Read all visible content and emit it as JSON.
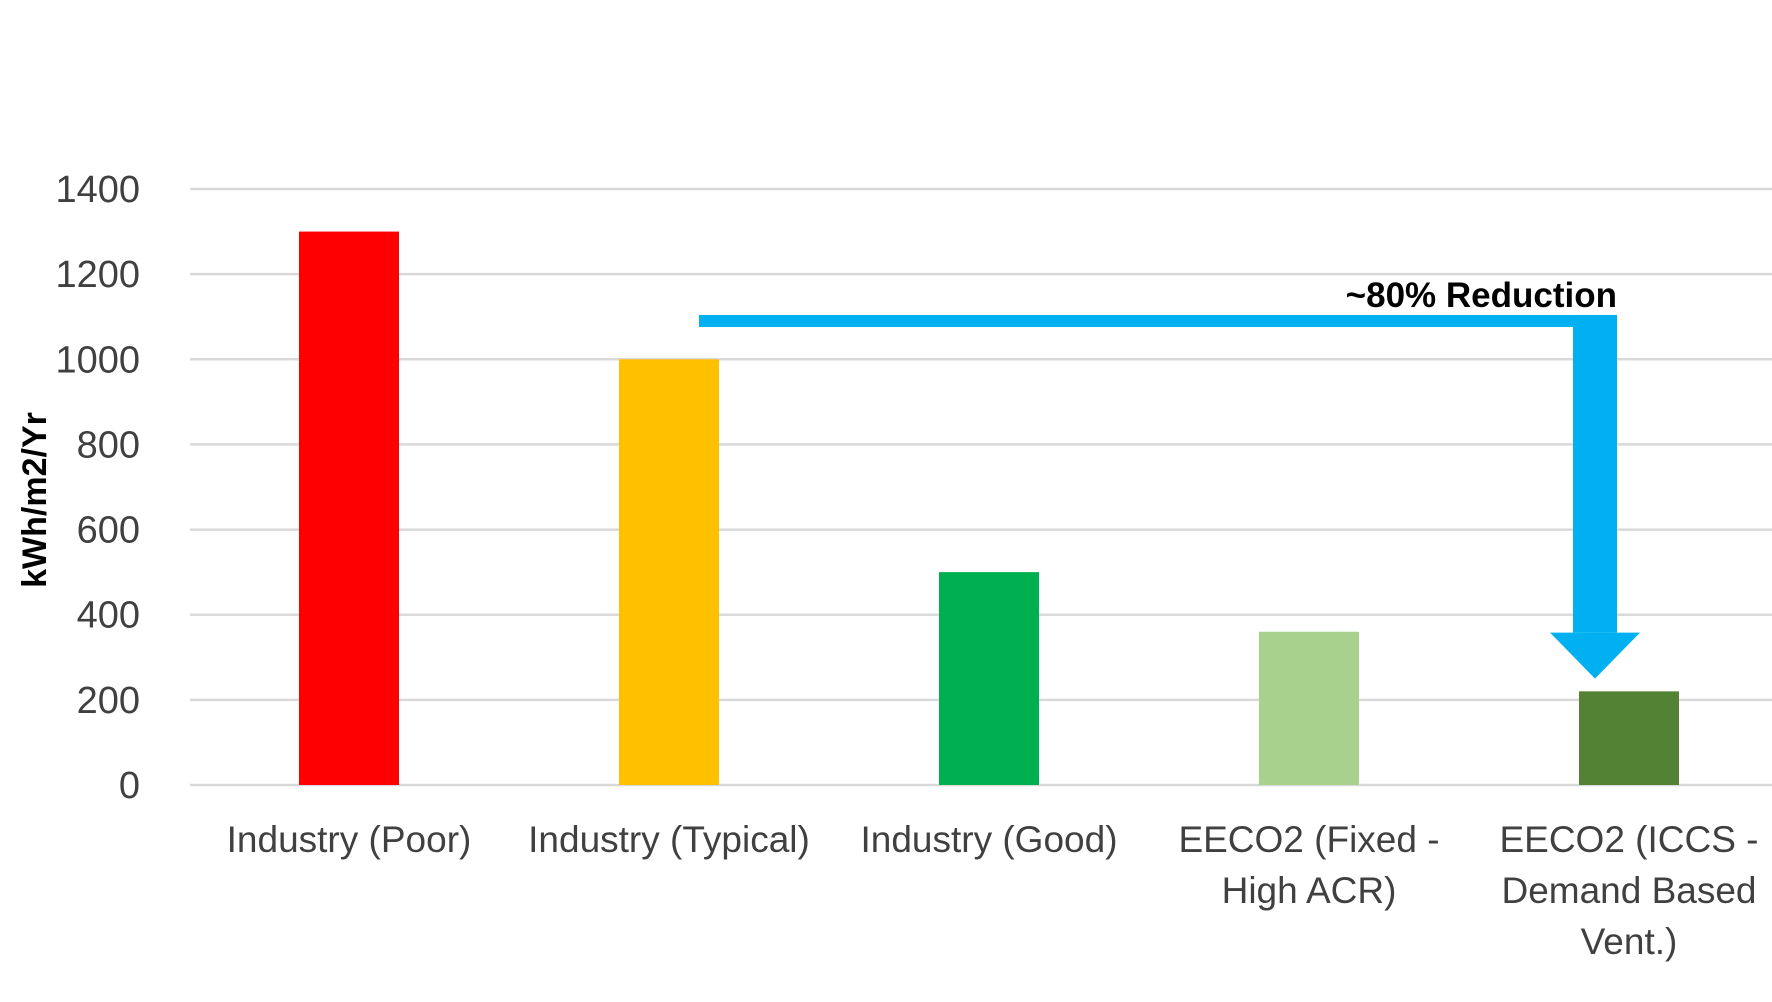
{
  "chart_data": {
    "type": "bar",
    "title": "",
    "xlabel": "",
    "ylabel": "kWh/m2/Yr",
    "ylim": [
      0,
      1400
    ],
    "yticks": [
      0,
      200,
      400,
      600,
      800,
      1000,
      1200,
      1400
    ],
    "grid": true,
    "categories": [
      [
        "Industry (Poor)"
      ],
      [
        "Industry (Typical)"
      ],
      [
        "Industry (Good)"
      ],
      [
        "EECO2 (Fixed -",
        "High ACR)"
      ],
      [
        "EECO2 (ICCS -",
        "Demand Based",
        "Vent.)"
      ]
    ],
    "values": [
      1300,
      1000,
      500,
      360,
      220
    ],
    "colors": [
      "#FF0000",
      "#FFC000",
      "#00B050",
      "#A9D18E",
      "#548235"
    ],
    "annotation": {
      "text": "~80% Reduction",
      "from_category": 1,
      "to_category": 4,
      "arrow_level": 1090,
      "arrow_tip": 250,
      "color": "#00B0F0"
    }
  }
}
